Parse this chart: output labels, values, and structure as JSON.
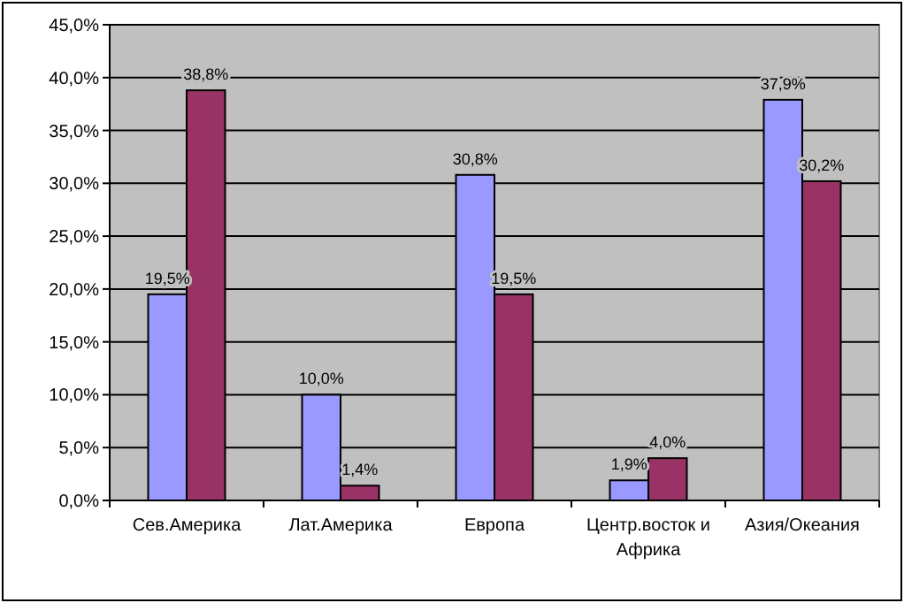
{
  "chart_data": {
    "type": "bar",
    "categories": [
      "Сев.Америка",
      "Лат.Америка",
      "Европа",
      "Центр.восток и Африка",
      "Азия/Океания"
    ],
    "series": [
      {
        "color": "#9999ff",
        "values": [
          19.5,
          10.0,
          30.8,
          1.9,
          37.9
        ],
        "value_labels": [
          "19,5%",
          "10,0%",
          "30,8%",
          "1,9%",
          "37,9%"
        ]
      },
      {
        "color": "#993366",
        "values": [
          38.8,
          1.4,
          19.5,
          4.0,
          30.2
        ],
        "value_labels": [
          "38,8%",
          "1,4%",
          "19,5%",
          "4,0%",
          "30,2%"
        ]
      }
    ],
    "ylim": [
      0,
      45
    ],
    "yticks": [
      {
        "value": 0,
        "label": "0,0%"
      },
      {
        "value": 5,
        "label": "5,0%"
      },
      {
        "value": 10,
        "label": "10,0%"
      },
      {
        "value": 15,
        "label": "15,0%"
      },
      {
        "value": 20,
        "label": "20,0%"
      },
      {
        "value": 25,
        "label": "25,0%"
      },
      {
        "value": 30,
        "label": "30,0%"
      },
      {
        "value": 35,
        "label": "35,0%"
      },
      {
        "value": 40,
        "label": "40,0%"
      },
      {
        "value": 45,
        "label": "45,0%"
      }
    ],
    "grid": "y"
  }
}
